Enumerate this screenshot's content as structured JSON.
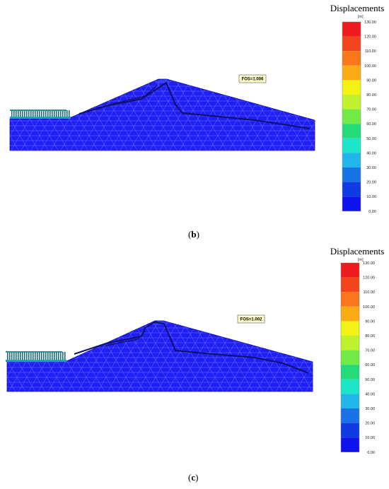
{
  "panels": [
    {
      "label": "b",
      "fos_text": "FOS=1.006",
      "legend": {
        "title": "Displacements",
        "unit": "[m]",
        "ticks": [
          "130.00",
          "120.00",
          "110.00",
          "100.00",
          "90.00",
          "80.00",
          "70.00",
          "60.00",
          "50.00",
          "40.00",
          "30.00",
          "20.00",
          "10.00",
          "0.00"
        ]
      }
    },
    {
      "label": "c",
      "fos_text": "FOS=1.002",
      "legend": {
        "title": "Displacements",
        "unit": "[m]",
        "ticks": [
          "130.00",
          "120.00",
          "110.00",
          "100.00",
          "90.00",
          "80.00",
          "70.00",
          "60.00",
          "50.00",
          "40.00",
          "30.00",
          "20.00",
          "10.00",
          "0.00"
        ]
      }
    }
  ],
  "colors": {
    "mesh_fill": "#1e1ef5",
    "mesh_line": "#8f8fff",
    "slip_line": "#10106a",
    "legend_bands": [
      "#ee1c1c",
      "#f4441b",
      "#f9771a",
      "#fdab12",
      "#f2f215",
      "#bff22c",
      "#72ea46",
      "#25da78",
      "#1ce6c8",
      "#22b5ea",
      "#1a73e6",
      "#103ae2",
      "#0f12ee"
    ]
  }
}
